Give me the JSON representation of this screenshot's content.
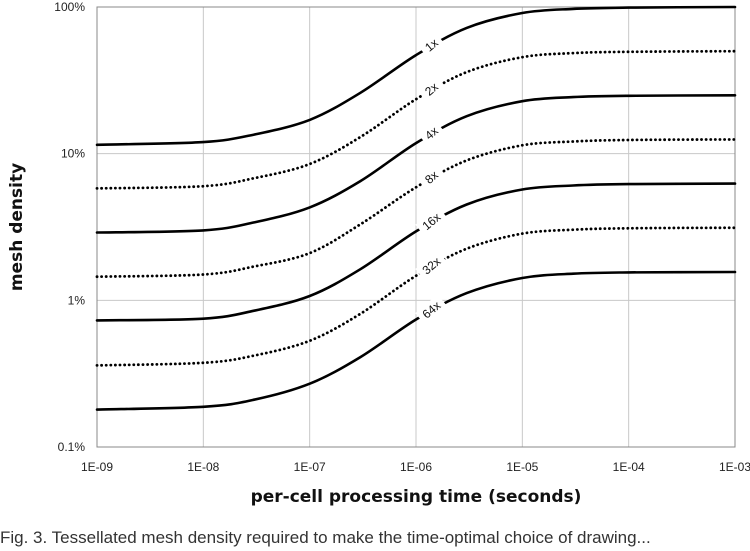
{
  "chart_data": {
    "type": "line",
    "xlabel": "per-cell processing time (seconds)",
    "ylabel": "mesh density",
    "x_scale": "log",
    "y_scale": "log",
    "xlim": [
      1e-09,
      0.001
    ],
    "ylim": [
      0.001,
      1
    ],
    "x_ticks": [
      1e-09,
      1e-08,
      1e-07,
      1e-06,
      1e-05,
      0.0001,
      0.001
    ],
    "x_tick_labels": [
      "1E-09",
      "1E-08",
      "1E-07",
      "1E-06",
      "1E-05",
      "1E-04",
      "1E-03"
    ],
    "y_ticks": [
      0.001,
      0.01,
      0.1,
      1
    ],
    "y_tick_labels": [
      "0.1%",
      "1%",
      "10%",
      "100%"
    ],
    "grid": true,
    "x": [
      1e-09,
      1e-08,
      3e-08,
      1e-07,
      3e-07,
      1e-06,
      3e-06,
      1e-05,
      3e-05,
      0.0001,
      0.001
    ],
    "series": [
      {
        "name": "1x",
        "style": "solid",
        "values": [
          0.115,
          0.12,
          0.135,
          0.17,
          0.26,
          0.47,
          0.72,
          0.91,
          0.97,
          0.99,
          1.0
        ]
      },
      {
        "name": "2x",
        "style": "dotted",
        "values": [
          0.058,
          0.06,
          0.068,
          0.085,
          0.13,
          0.235,
          0.36,
          0.455,
          0.485,
          0.495,
          0.5
        ]
      },
      {
        "name": "4x",
        "style": "solid",
        "values": [
          0.029,
          0.03,
          0.034,
          0.043,
          0.065,
          0.118,
          0.18,
          0.228,
          0.243,
          0.248,
          0.25
        ]
      },
      {
        "name": "8x",
        "style": "dotted",
        "values": [
          0.0145,
          0.015,
          0.017,
          0.021,
          0.033,
          0.059,
          0.09,
          0.114,
          0.121,
          0.124,
          0.125
        ]
      },
      {
        "name": "16x",
        "style": "solid",
        "values": [
          0.0073,
          0.0075,
          0.0085,
          0.0107,
          0.0163,
          0.0295,
          0.045,
          0.057,
          0.0607,
          0.062,
          0.0625
        ]
      },
      {
        "name": "32x",
        "style": "dotted",
        "values": [
          0.0036,
          0.00375,
          0.0042,
          0.0053,
          0.0081,
          0.0147,
          0.0225,
          0.0285,
          0.0303,
          0.031,
          0.03125
        ]
      },
      {
        "name": "64x",
        "style": "solid",
        "values": [
          0.0018,
          0.00188,
          0.0021,
          0.0027,
          0.0041,
          0.0074,
          0.0112,
          0.0142,
          0.0152,
          0.0155,
          0.0156
        ]
      }
    ],
    "annotations": [
      {
        "text": "1x",
        "x": 1.4e-06,
        "y": 0.55
      },
      {
        "text": "2x",
        "x": 1.4e-06,
        "y": 0.275
      },
      {
        "text": "4x",
        "x": 1.4e-06,
        "y": 0.138
      },
      {
        "text": "8x",
        "x": 1.4e-06,
        "y": 0.069
      },
      {
        "text": "16x",
        "x": 1.4e-06,
        "y": 0.0345
      },
      {
        "text": "32x",
        "x": 1.4e-06,
        "y": 0.0172
      },
      {
        "text": "64x",
        "x": 1.4e-06,
        "y": 0.0086
      }
    ]
  },
  "caption": "Fig. 3. Tessellated mesh density required to make the time-optimal choice of drawing..."
}
